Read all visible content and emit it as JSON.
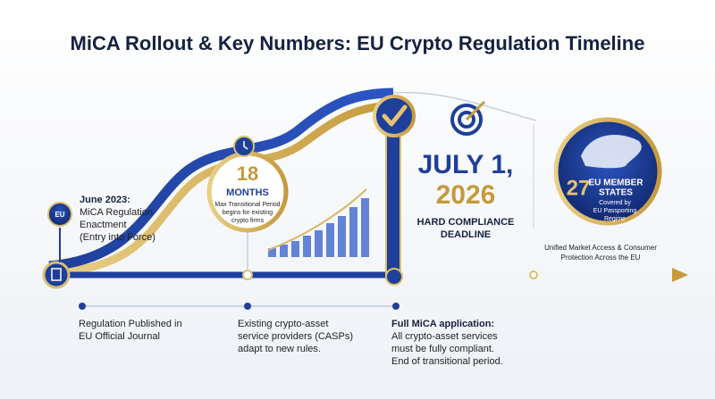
{
  "title": "MiCA Rollout & Key Numbers: EU Crypto Regulation Timeline",
  "enactment": {
    "badge": "EU",
    "heading": "June 2023:",
    "lines": [
      "MiCA Regulation",
      "Enactment",
      "(Entry into Force)"
    ]
  },
  "transition": {
    "number": "18",
    "unit": "MONTHS",
    "lines": [
      "Max Transitional Period",
      "begins for existing",
      "crypto firms"
    ]
  },
  "deadline": {
    "date": [
      "JULY 1,",
      "2026"
    ],
    "caption": [
      "HARD COMPLIANCE",
      "DEADLINE"
    ]
  },
  "member_states": {
    "number": "27",
    "label": [
      "EU MEMBER",
      "STATES"
    ],
    "lines": [
      "Covered by",
      "EU Passporting",
      "Regime"
    ]
  },
  "market_access": [
    "Unified Market Access & Consumer",
    "Protection Across the EU"
  ],
  "notes": [
    {
      "lines": [
        "Regulation Published in",
        "EU Official Journal"
      ]
    },
    {
      "lines": [
        "Existing crypto-asset",
        "service providers (CASPs)",
        "adapt to new rules."
      ]
    },
    {
      "heading": "Full MiCA application:",
      "lines": [
        "All crypto-asset services",
        "must be fully compliant.",
        "End of transitional period."
      ]
    }
  ]
}
